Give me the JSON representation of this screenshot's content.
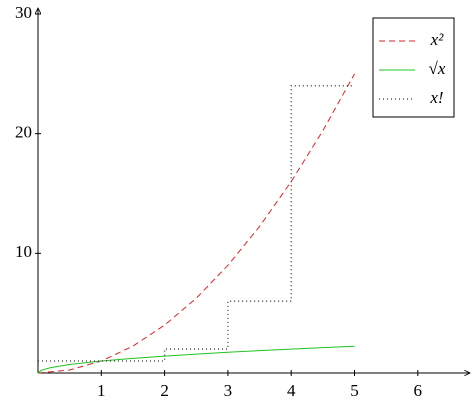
{
  "chart_data": {
    "type": "line",
    "xlim": [
      0,
      6.8
    ],
    "ylim": [
      0,
      30
    ],
    "xticks": [
      1,
      2,
      3,
      4,
      5,
      6
    ],
    "yticks": [
      10,
      20,
      30
    ],
    "legend": "top-right",
    "series": [
      {
        "name": "x²",
        "color": "#d62728",
        "style": "dashed",
        "x": [
          0,
          0.5,
          1,
          1.5,
          2,
          2.5,
          3,
          3.5,
          4,
          4.5,
          5
        ],
        "values": [
          0,
          0.25,
          1,
          2.25,
          4,
          6.25,
          9,
          12.25,
          16,
          20.25,
          25
        ]
      },
      {
        "name": "√x",
        "color": "#22c322",
        "style": "solid",
        "x": [
          0,
          0.05,
          0.2,
          0.5,
          1,
          1.5,
          2,
          2.5,
          3,
          3.5,
          4,
          4.5,
          5
        ],
        "values": [
          0,
          0.224,
          0.447,
          0.707,
          1,
          1.225,
          1.414,
          1.581,
          1.732,
          1.871,
          2,
          2.121,
          2.236
        ]
      },
      {
        "name": "x!",
        "color": "#333333",
        "style": "step",
        "x": [
          0,
          1,
          2,
          3,
          4,
          5
        ],
        "values": [
          1,
          1,
          2,
          6,
          24,
          24
        ]
      }
    ]
  }
}
